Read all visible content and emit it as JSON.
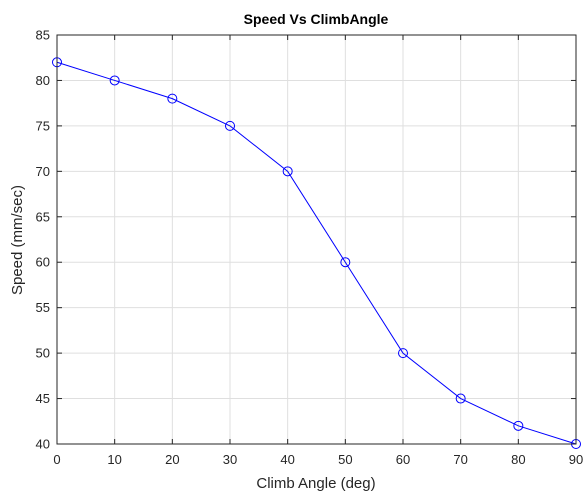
{
  "chart_data": {
    "type": "line",
    "title": "Speed Vs ClimbAngle",
    "xlabel": "Climb Angle (deg)",
    "ylabel": "Speed (mm/sec)",
    "xlim": [
      0,
      90
    ],
    "ylim": [
      40,
      85
    ],
    "xticks": [
      0,
      10,
      20,
      30,
      40,
      50,
      60,
      70,
      80,
      90
    ],
    "yticks": [
      40,
      45,
      50,
      55,
      60,
      65,
      70,
      75,
      80,
      85
    ],
    "grid": true,
    "legend": "none",
    "series": [
      {
        "color": "#0000ff",
        "marker": "circle",
        "x": [
          0,
          10,
          20,
          30,
          40,
          50,
          60,
          70,
          80,
          90
        ],
        "y": [
          82,
          80,
          78,
          75,
          70,
          60,
          50,
          45,
          42,
          40
        ]
      }
    ]
  }
}
